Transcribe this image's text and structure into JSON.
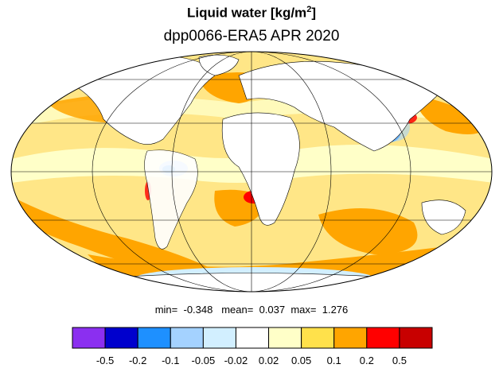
{
  "header": {
    "title": "Liquid water  [kg/m",
    "title_sup": "2",
    "title_end": "]",
    "subtitle": "dpp0066-ERA5 APR 2020"
  },
  "stats": {
    "min_label": "min=",
    "min_value": "-0.348",
    "mean_label": "mean=",
    "mean_value": "0.037",
    "max_label": "max=",
    "max_value": "1.276"
  },
  "colorbar": {
    "colors": [
      "#8b2ff0",
      "#0000cd",
      "#1e90ff",
      "#a4d2ff",
      "#d2efff",
      "#ffffff",
      "#ffffc8",
      "#ffe14b",
      "#ffa500",
      "#ff0000",
      "#c80000"
    ],
    "labels": [
      "-0.5",
      "-0.2",
      "-0.1",
      "-0.05",
      "-0.02",
      "0.02",
      "0.05",
      "0.1",
      "0.2",
      "0.5"
    ]
  },
  "map": {
    "projection": "mollweide",
    "ocean_dominant_color": "#ffe14b",
    "graticule_color": "#000000",
    "coastline_color": "#000000"
  }
}
